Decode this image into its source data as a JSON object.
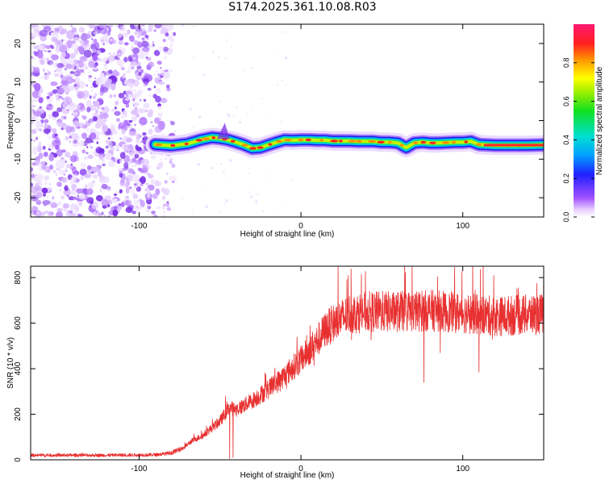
{
  "title": "S174.2025.361.10.08.R03",
  "chart_data": [
    {
      "type": "heatmap",
      "id": "spectrogram",
      "xlabel": "Height of straight line (km)",
      "ylabel": "Frequency (Hz)",
      "xlim": [
        -167,
        150
      ],
      "ylim": [
        -25,
        25
      ],
      "xticks": [
        -100,
        0,
        100
      ],
      "xtick_labels": [
        "-100",
        "0",
        "100"
      ],
      "yticks": [
        -20,
        -10,
        0,
        10,
        20
      ],
      "ytick_labels": [
        "-20",
        "-10",
        "0",
        "10",
        "20"
      ],
      "noise_region": [
        -167,
        -83
      ],
      "signal_start": -90,
      "ridge": {
        "x": [
          -90,
          -80,
          -70,
          -62,
          -55,
          -50,
          -45,
          -40,
          -35,
          -30,
          -25,
          -20,
          -15,
          -10,
          -5,
          0,
          5,
          10,
          15,
          20,
          25,
          30,
          35,
          40,
          45,
          50,
          55,
          60,
          65,
          70,
          75,
          80,
          85,
          90,
          95,
          100,
          105,
          110,
          115,
          120,
          130,
          140,
          150
        ],
        "freq": [
          -6.2,
          -6.5,
          -6.0,
          -5.0,
          -4.4,
          -4.6,
          -5.0,
          -5.6,
          -6.3,
          -7.2,
          -7.0,
          -6.3,
          -5.6,
          -5.0,
          -5.1,
          -5.0,
          -5.0,
          -5.1,
          -5.1,
          -5.3,
          -5.3,
          -5.3,
          -5.4,
          -5.4,
          -5.4,
          -5.6,
          -5.6,
          -5.8,
          -7.0,
          -5.8,
          -5.6,
          -5.8,
          -5.8,
          -5.7,
          -5.6,
          -5.6,
          -5.4,
          -6.2,
          -6.3,
          -6.4,
          -6.4,
          -6.4,
          -6.3
        ]
      }
    },
    {
      "type": "colorbar",
      "id": "amplitude_colorbar",
      "label": "Normalized spectral amplitude",
      "range": [
        0,
        1
      ],
      "ticks": [
        0.0,
        0.2,
        0.4,
        0.6,
        0.8
      ],
      "tick_labels": [
        "0.0",
        "0.2",
        "0.4",
        "0.6",
        "0.8"
      ]
    },
    {
      "type": "line",
      "id": "snr",
      "xlabel": "Height of straight line (km)",
      "ylabel": "SNR (10 * v/v)",
      "xlim": [
        -167,
        150
      ],
      "ylim": [
        0,
        850
      ],
      "xticks": [
        -100,
        0,
        100
      ],
      "xtick_labels": [
        "-100",
        "0",
        "100"
      ],
      "yticks": [
        0,
        200,
        400,
        600,
        800
      ],
      "ytick_labels": [
        "0",
        "200",
        "400",
        "600",
        "800"
      ],
      "color": "#e83030",
      "envelope": {
        "x": [
          -167,
          -120,
          -90,
          -80,
          -72,
          -68,
          -60,
          -50,
          -44,
          -40,
          -30,
          -20,
          -10,
          0,
          10,
          15,
          20,
          30,
          40,
          60,
          80,
          100,
          120,
          150
        ],
        "y": [
          20,
          20,
          22,
          30,
          55,
          80,
          110,
          170,
          230,
          220,
          260,
          310,
          370,
          440,
          520,
          570,
          600,
          640,
          650,
          650,
          655,
          645,
          630,
          640
        ]
      },
      "dips": [
        {
          "x": -44,
          "y": 5
        },
        {
          "x": -42,
          "y": 10
        },
        {
          "x": 76,
          "y": 340
        },
        {
          "x": 110,
          "y": 385
        }
      ],
      "peaks": [
        {
          "x": 95,
          "y": 845
        },
        {
          "x": 111,
          "y": 835
        }
      ]
    }
  ]
}
